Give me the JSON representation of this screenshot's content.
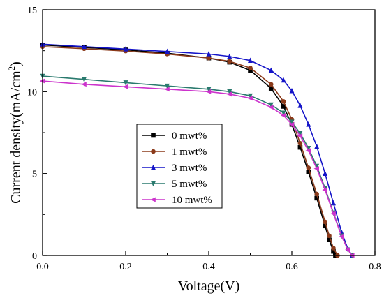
{
  "chart_data": {
    "type": "line",
    "xlabel": "Voltage(V)",
    "ylabel_main": "Current density(mA/cm",
    "ylabel_sup": "2",
    "ylabel_end": ")",
    "xlim": [
      0.0,
      0.8
    ],
    "ylim": [
      0,
      15
    ],
    "xticks": [
      "0.0",
      "0.2",
      "0.4",
      "0.6",
      "0.8"
    ],
    "yticks": [
      "0",
      "5",
      "10",
      "15"
    ],
    "grid": false,
    "legend_position": "center-left",
    "series": [
      {
        "name": "0 mwt%",
        "color": "#000000",
        "marker": "square",
        "x": [
          0.0,
          0.1,
          0.2,
          0.3,
          0.4,
          0.45,
          0.5,
          0.55,
          0.58,
          0.6,
          0.62,
          0.64,
          0.66,
          0.68,
          0.69,
          0.7,
          0.705
        ],
        "y": [
          12.85,
          12.7,
          12.55,
          12.35,
          12.05,
          11.8,
          11.3,
          10.2,
          9.1,
          8.0,
          6.6,
          5.1,
          3.5,
          1.8,
          0.95,
          0.25,
          0.0
        ]
      },
      {
        "name": "1 mwt%",
        "color": "#8b3a1a",
        "marker": "circle",
        "x": [
          0.0,
          0.1,
          0.2,
          0.3,
          0.4,
          0.45,
          0.5,
          0.55,
          0.58,
          0.6,
          0.62,
          0.64,
          0.66,
          0.68,
          0.69,
          0.7,
          0.71
        ],
        "y": [
          12.75,
          12.62,
          12.48,
          12.3,
          12.05,
          11.85,
          11.45,
          10.45,
          9.4,
          8.3,
          6.85,
          5.35,
          3.75,
          2.05,
          1.2,
          0.45,
          0.0
        ]
      },
      {
        "name": "3 mwt%",
        "color": "#1414c8",
        "marker": "triangle-up",
        "x": [
          0.0,
          0.1,
          0.2,
          0.3,
          0.4,
          0.45,
          0.5,
          0.55,
          0.58,
          0.6,
          0.62,
          0.64,
          0.66,
          0.68,
          0.7,
          0.72,
          0.735,
          0.745
        ],
        "y": [
          12.9,
          12.75,
          12.6,
          12.45,
          12.3,
          12.15,
          11.9,
          11.3,
          10.7,
          10.05,
          9.15,
          8.0,
          6.65,
          5.0,
          3.2,
          1.4,
          0.4,
          0.0
        ]
      },
      {
        "name": "5 mwt%",
        "color": "#2a7a6e",
        "marker": "triangle-down",
        "x": [
          0.0,
          0.1,
          0.2,
          0.3,
          0.4,
          0.45,
          0.5,
          0.55,
          0.58,
          0.6,
          0.62,
          0.64,
          0.66,
          0.68,
          0.7,
          0.72,
          0.735,
          0.745
        ],
        "y": [
          10.95,
          10.75,
          10.55,
          10.35,
          10.15,
          10.0,
          9.75,
          9.2,
          8.7,
          8.15,
          7.45,
          6.55,
          5.45,
          4.1,
          2.6,
          1.2,
          0.35,
          0.0
        ]
      },
      {
        "name": "10 mwt%",
        "color": "#cc33cc",
        "marker": "triangle-left",
        "x": [
          0.0,
          0.1,
          0.2,
          0.3,
          0.4,
          0.45,
          0.5,
          0.55,
          0.58,
          0.6,
          0.62,
          0.64,
          0.66,
          0.68,
          0.7,
          0.72,
          0.735,
          0.745
        ],
        "y": [
          10.65,
          10.45,
          10.3,
          10.15,
          10.0,
          9.85,
          9.6,
          9.05,
          8.55,
          8.0,
          7.3,
          6.4,
          5.3,
          4.0,
          2.55,
          1.15,
          0.35,
          0.0
        ]
      }
    ]
  }
}
